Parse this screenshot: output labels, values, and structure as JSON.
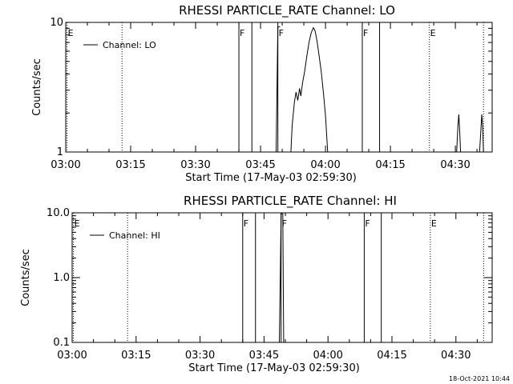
{
  "footer": {
    "timestamp": "18-Oct-2021 10:44"
  },
  "chart_data": [
    {
      "type": "line",
      "title": "RHESSI PARTICLE_RATE Channel: LO",
      "xlabel": "Start Time (17-May-03 02:59:30)",
      "ylabel": "Counts/sec",
      "yscale": "log",
      "xlim_min": [
        0,
        98.5
      ],
      "ylim": [
        1,
        10
      ],
      "xticks": [
        0,
        15,
        30,
        45,
        60,
        75,
        90
      ],
      "xtick_labels": [
        "03:00",
        "03:15",
        "03:30",
        "03:45",
        "04:00",
        "04:15",
        "04:30"
      ],
      "yticks": [
        1,
        10
      ],
      "ytick_labels": [
        "1",
        "10"
      ],
      "legend": {
        "label": "Channel: LO",
        "position": "top-left"
      },
      "grid": false,
      "markers": [
        {
          "x": 0.3,
          "label": "E",
          "style": "dotted"
        },
        {
          "x": 13,
          "label": "",
          "style": "dotted"
        },
        {
          "x": 40,
          "label": "F",
          "style": "solid"
        },
        {
          "x": 43,
          "label": "",
          "style": "solid"
        },
        {
          "x": 49,
          "label": "F",
          "style": "solid"
        },
        {
          "x": 68.5,
          "label": "F",
          "style": "solid"
        },
        {
          "x": 72.5,
          "label": "",
          "style": "solid"
        },
        {
          "x": 84,
          "label": "E",
          "style": "dotted"
        },
        {
          "x": 96.5,
          "label": "",
          "style": "dotted"
        }
      ],
      "series": [
        {
          "segments": [
            [
              [
                48.6,
                1
              ],
              [
                49,
                9.2
              ],
              [
                49.5,
                9.3
              ]
            ],
            [
              [
                52,
                1
              ],
              [
                52.3,
                1.6
              ],
              [
                52.8,
                2.4
              ],
              [
                53.2,
                2.9
              ],
              [
                53.6,
                2.5
              ],
              [
                54,
                3.1
              ],
              [
                54.3,
                2.7
              ],
              [
                54.7,
                3.4
              ],
              [
                55.2,
                4.2
              ],
              [
                55.7,
                5.5
              ],
              [
                56.2,
                7
              ],
              [
                56.7,
                8.3
              ],
              [
                57.2,
                9.1
              ],
              [
                57.6,
                8.6
              ],
              [
                58,
                7.3
              ],
              [
                58.5,
                5.6
              ],
              [
                59,
                4.2
              ],
              [
                59.5,
                2.9
              ],
              [
                60,
                1.9
              ],
              [
                60.5,
                1
              ]
            ],
            [
              [
                90.3,
                1
              ],
              [
                90.6,
                1.6
              ],
              [
                90.8,
                1.95
              ],
              [
                91,
                1.45
              ],
              [
                91.2,
                1
              ]
            ],
            [
              [
                95.6,
                1
              ],
              [
                95.9,
                1.5
              ],
              [
                96.1,
                1.95
              ],
              [
                96.3,
                1.6
              ],
              [
                96.5,
                1
              ]
            ]
          ]
        }
      ]
    },
    {
      "type": "line",
      "title": "RHESSI PARTICLE_RATE Channel: HI",
      "xlabel": "Start Time (17-May-03 02:59:30)",
      "ylabel": "Counts/sec",
      "yscale": "log",
      "xlim_min": [
        0,
        98.5
      ],
      "ylim": [
        0.1,
        10
      ],
      "xticks": [
        0,
        15,
        30,
        45,
        60,
        75,
        90
      ],
      "xtick_labels": [
        "03:00",
        "03:15",
        "03:30",
        "03:45",
        "04:00",
        "04:15",
        "04:30"
      ],
      "yticks": [
        0.1,
        1,
        10
      ],
      "ytick_labels": [
        "0.1",
        "1.0",
        "10.0"
      ],
      "legend": {
        "label": "Channel: HI",
        "position": "top-left"
      },
      "grid": false,
      "markers": [
        {
          "x": 0.3,
          "label": "E",
          "style": "dotted"
        },
        {
          "x": 13,
          "label": "",
          "style": "dotted"
        },
        {
          "x": 40,
          "label": "F",
          "style": "solid"
        },
        {
          "x": 43,
          "label": "",
          "style": "solid"
        },
        {
          "x": 49,
          "label": "F",
          "style": "solid"
        },
        {
          "x": 68.5,
          "label": "F",
          "style": "solid"
        },
        {
          "x": 72.5,
          "label": "",
          "style": "solid"
        },
        {
          "x": 84,
          "label": "E",
          "style": "dotted"
        },
        {
          "x": 96.5,
          "label": "",
          "style": "dotted"
        }
      ],
      "series": [
        {
          "segments": [
            [
              [
                48.6,
                0.1
              ],
              [
                49,
                9.6
              ],
              [
                49.4,
                9.6
              ],
              [
                49.6,
                0.1
              ]
            ]
          ]
        }
      ]
    }
  ]
}
